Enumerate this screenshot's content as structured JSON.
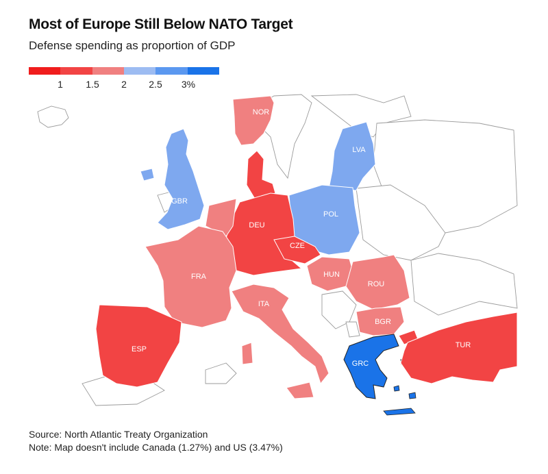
{
  "title": "Most of Europe Still Below NATO Target",
  "subtitle": "Defense spending as proportion of GDP",
  "legend": {
    "colors": [
      "#f01d1d",
      "#f24444",
      "#f08080",
      "#9dbcf2",
      "#5b98f0",
      "#1a73e8"
    ],
    "ticks": [
      "1",
      "1.5",
      "2",
      "2.5",
      "3%"
    ],
    "tick_values": [
      1,
      1.5,
      2,
      2.5,
      3
    ]
  },
  "countries": {
    "NOR": {
      "label": "NOR",
      "color": "#f08080"
    },
    "GBR": {
      "label": "GBR",
      "color": "#7ea8ef"
    },
    "LVA": {
      "label": "LVA",
      "color": "#7ea8ef"
    },
    "POL": {
      "label": "POL",
      "color": "#7ea8ef"
    },
    "DEU": {
      "label": "DEU",
      "color": "#f24444"
    },
    "CZE": {
      "label": "CZE",
      "color": "#f24444"
    },
    "FRA": {
      "label": "FRA",
      "color": "#f08080"
    },
    "HUN": {
      "label": "HUN",
      "color": "#f08080"
    },
    "ROU": {
      "label": "ROU",
      "color": "#f08080"
    },
    "ITA": {
      "label": "ITA",
      "color": "#f08080"
    },
    "BGR": {
      "label": "BGR",
      "color": "#f08080"
    },
    "ESP": {
      "label": "ESP",
      "color": "#f24444"
    },
    "GRC": {
      "label": "GRC",
      "color": "#1a73e8"
    },
    "TUR": {
      "label": "TUR",
      "color": "#f24444"
    }
  },
  "source": "Source: North Atlantic Treaty Organization",
  "note": "Note: Map doesn't include Canada (1.27%) and US (3.47%)"
}
